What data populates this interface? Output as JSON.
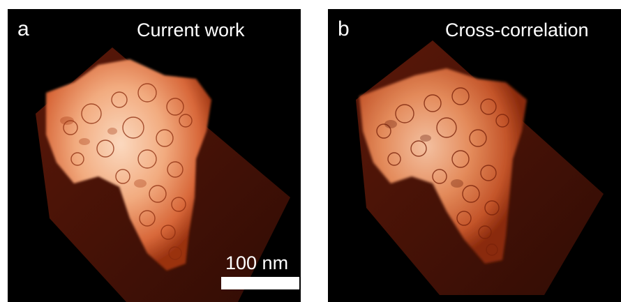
{
  "panels": [
    {
      "letter": "a",
      "title": "Current work",
      "scale_bar": {
        "label": "100 nm"
      }
    },
    {
      "letter": "b",
      "title": "Cross-correlation"
    }
  ],
  "colors": {
    "background": "#000000",
    "slab": "#5a1608",
    "particle_light": "#f6c4a0",
    "particle_mid": "#e07a45",
    "particle_edge": "#8a2a0c",
    "text": "#ffffff"
  }
}
